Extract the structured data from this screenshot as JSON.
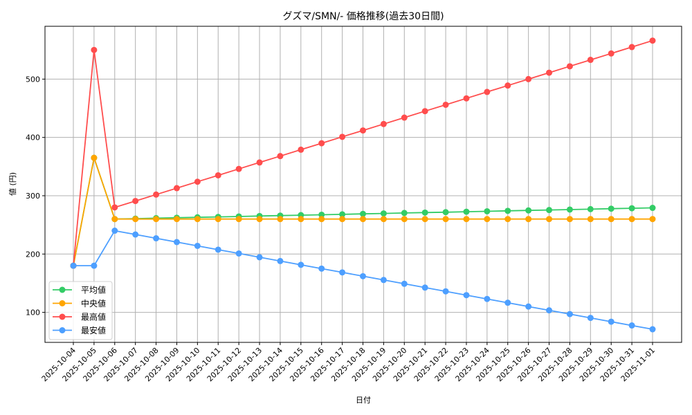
{
  "chart_data": {
    "type": "line",
    "title": "グズマ/SMN/- 価格推移(過去30日間)",
    "xlabel": "日付",
    "ylabel": "値 (円)",
    "ylim": [
      48.5,
      590.6
    ],
    "yticks": [
      100,
      200,
      300,
      400,
      500
    ],
    "grid": true,
    "legend_position": "lower left",
    "x": [
      "2025-10-04",
      "2025-10-05",
      "2025-10-06",
      "2025-10-07",
      "2025-10-08",
      "2025-10-09",
      "2025-10-10",
      "2025-10-11",
      "2025-10-12",
      "2025-10-13",
      "2025-10-14",
      "2025-10-15",
      "2025-10-16",
      "2025-10-17",
      "2025-10-18",
      "2025-10-19",
      "2025-10-20",
      "2025-10-21",
      "2025-10-22",
      "2025-10-23",
      "2025-10-24",
      "2025-10-25",
      "2025-10-26",
      "2025-10-27",
      "2025-10-28",
      "2025-10-29",
      "2025-10-30",
      "2025-10-31",
      "2025-11-01"
    ],
    "series": [
      {
        "name": "平均値",
        "color": "#33cc66",
        "values": [
          180,
          365,
          260,
          260.7,
          261.5,
          262.2,
          263,
          263.7,
          264.4,
          265.2,
          265.9,
          266.7,
          267.4,
          268.1,
          268.9,
          269.6,
          270.4,
          271.1,
          271.8,
          272.6,
          273.3,
          274.1,
          274.8,
          275.5,
          276.3,
          277,
          277.8,
          278.5,
          279.2
        ]
      },
      {
        "name": "中央値",
        "color": "#ffa500",
        "values": [
          180,
          365,
          260,
          260,
          260,
          260,
          260,
          260,
          260,
          260,
          260,
          260,
          260,
          260,
          260,
          260,
          260,
          260,
          260,
          260,
          260,
          260,
          260,
          260,
          260,
          260,
          260,
          260,
          260
        ]
      },
      {
        "name": "最高値",
        "color": "#ff4d4d",
        "values": [
          180,
          550,
          280,
          291,
          302,
          313,
          324,
          335,
          346,
          357,
          368,
          379,
          390,
          401,
          412,
          423,
          434,
          445,
          456,
          467,
          478,
          489,
          500,
          511,
          522,
          533,
          544,
          555,
          566
        ]
      },
      {
        "name": "最安値",
        "color": "#4d9fff",
        "values": [
          180,
          180,
          240,
          233.5,
          227,
          220.5,
          214,
          207.5,
          201,
          194.5,
          188,
          181.5,
          175,
          168.5,
          162,
          155.5,
          149,
          142.5,
          136,
          129.5,
          123,
          116.5,
          110,
          103.5,
          97,
          90.5,
          84,
          77.5,
          71
        ]
      }
    ]
  }
}
